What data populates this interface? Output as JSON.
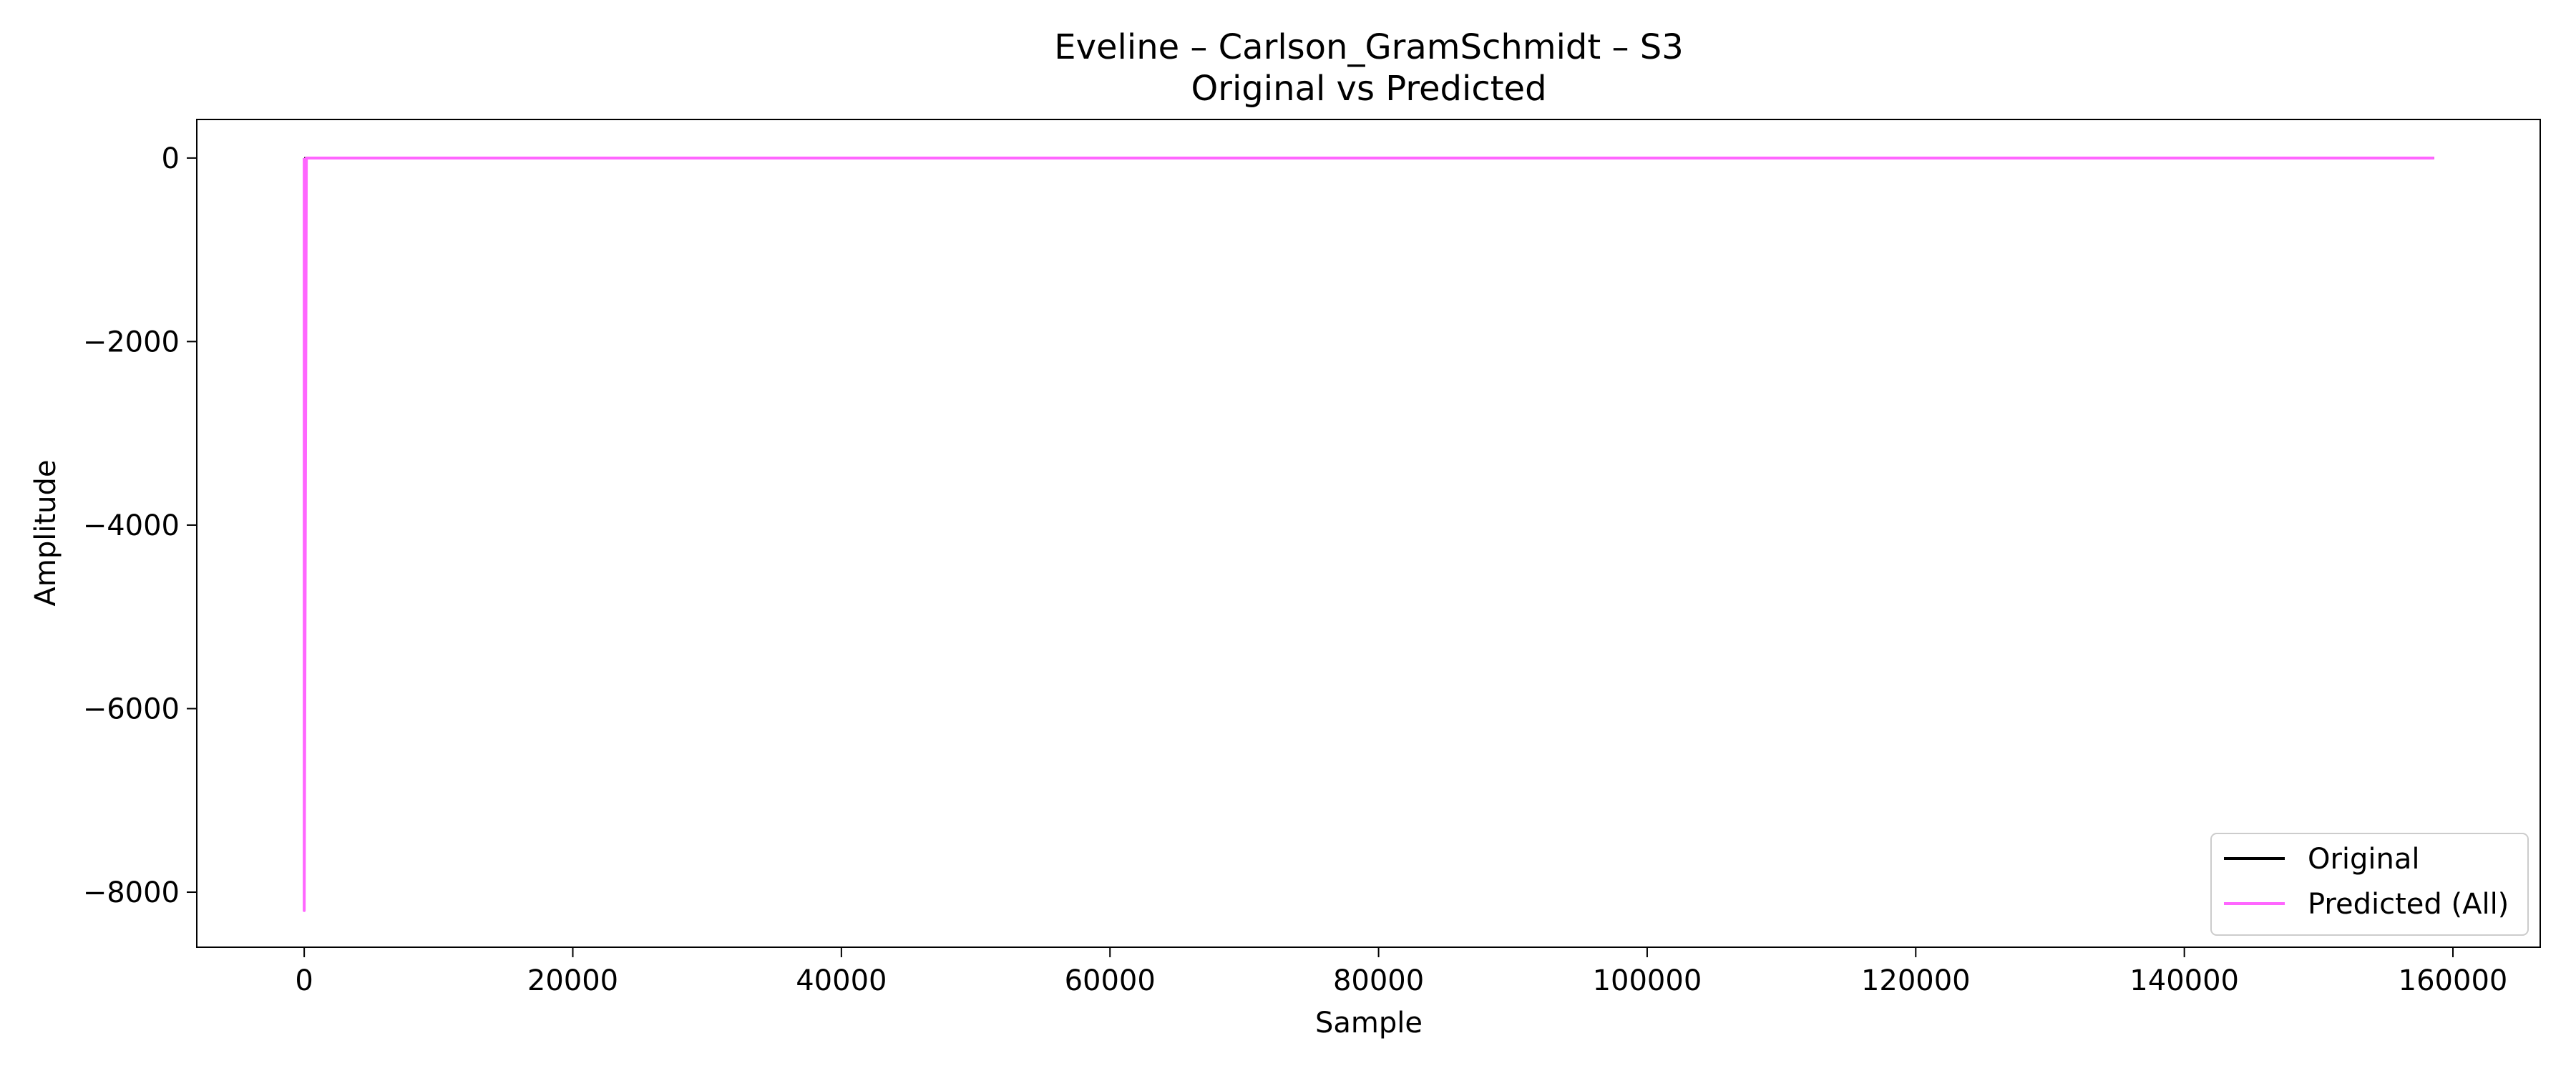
{
  "chart_data": {
    "type": "line",
    "title": "Eveline – Carlson_GramSchmidt – S3",
    "subtitle": "Original vs Predicted",
    "xlabel": "Sample",
    "ylabel": "Amplitude",
    "xlim": [
      -8000,
      166500
    ],
    "ylim": [
      -8600,
      420
    ],
    "x_ticks": [
      0,
      20000,
      40000,
      60000,
      80000,
      100000,
      120000,
      140000,
      160000
    ],
    "y_ticks": [
      0,
      -2000,
      -4000,
      -6000,
      -8000
    ],
    "x_tick_labels": [
      "0",
      "20000",
      "40000",
      "60000",
      "80000",
      "100000",
      "120000",
      "140000",
      "160000"
    ],
    "y_tick_labels": [
      "0",
      "−2000",
      "−4000",
      "−6000",
      "−8000"
    ],
    "grid": false,
    "legend_position": "lower-right",
    "series": [
      {
        "name": "Original",
        "color": "#000000",
        "x": [
          0,
          158600
        ],
        "y": [
          0,
          0
        ]
      },
      {
        "name": "Predicted (All)",
        "color": "#ff66ff",
        "x": [
          0,
          0,
          160,
          400,
          158600
        ],
        "y": [
          0,
          -8200,
          0,
          0,
          0
        ]
      }
    ]
  }
}
